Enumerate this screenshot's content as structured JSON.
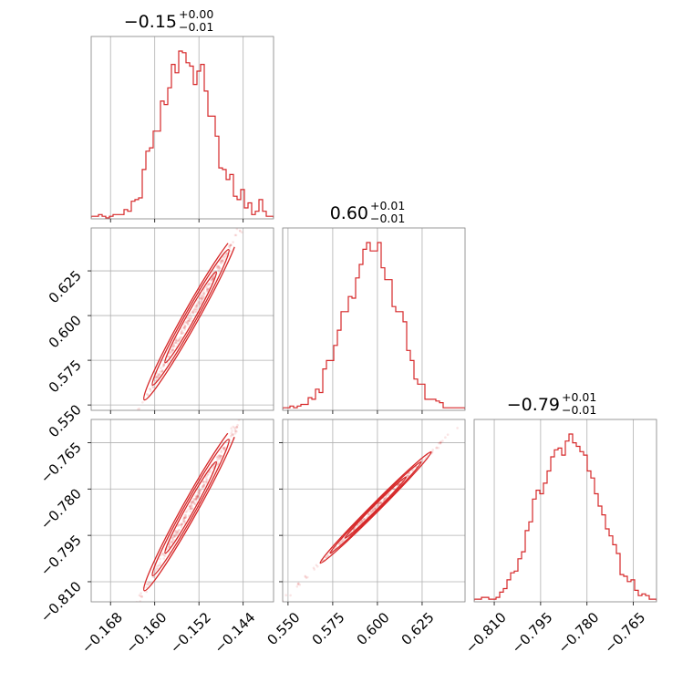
{
  "chart_data": {
    "type": "corner",
    "color": "#d62728",
    "grid": true,
    "params": [
      {
        "title": {
          "center": "−0.15",
          "upper": "+0.00",
          "lower": "−0.01"
        },
        "range": [
          -0.1715,
          -0.1385
        ],
        "ticks": [
          -0.168,
          -0.16,
          -0.152,
          -0.144
        ],
        "tick_labels": [
          "−0.168",
          "−0.160",
          "−0.152",
          "−0.144"
        ],
        "histogram": {
          "bin_start": -0.1715,
          "bin_width": 0.00066,
          "counts": [
            1,
            1,
            2,
            1,
            0,
            1,
            2,
            2,
            2,
            5,
            4,
            10,
            11,
            12,
            29,
            40,
            42,
            52,
            52,
            70,
            68,
            78,
            92,
            87,
            100,
            99,
            93,
            91,
            80,
            88,
            92,
            76,
            61,
            61,
            49,
            30,
            29,
            23,
            26,
            13,
            11,
            17,
            6,
            9,
            2,
            4,
            11,
            4,
            1,
            1
          ]
        }
      },
      {
        "title": {
          "center": "0.60",
          "upper": "+0.01",
          "lower": "−0.01"
        },
        "range": [
          0.547,
          0.649
        ],
        "ticks": [
          0.55,
          0.575,
          0.6,
          0.625
        ],
        "tick_labels": [
          "0.550",
          "0.575",
          "0.600",
          "0.625"
        ],
        "histogram": {
          "bin_start": 0.547,
          "bin_width": 0.00204,
          "counts": [
            1,
            1,
            2,
            1,
            2,
            3,
            3,
            7,
            6,
            12,
            10,
            24,
            29,
            29,
            38,
            47,
            58,
            58,
            67,
            66,
            78,
            86,
            95,
            99,
            94,
            94,
            99,
            84,
            77,
            77,
            61,
            58,
            58,
            52,
            35,
            29,
            18,
            15,
            15,
            6,
            6,
            6,
            5,
            4,
            1,
            1,
            1,
            1,
            1,
            1
          ]
        }
      },
      {
        "title": {
          "center": "−0.79",
          "upper": "+0.01",
          "lower": "−0.01"
        },
        "range": [
          -0.8165,
          -0.7575
        ],
        "ticks": [
          -0.81,
          -0.795,
          -0.78,
          -0.765
        ],
        "tick_labels": [
          "−0.810",
          "−0.795",
          "−0.780",
          "−0.765"
        ],
        "histogram": {
          "bin_start": -0.8165,
          "bin_width": 0.00118,
          "counts": [
            1,
            1,
            2,
            2,
            1,
            1,
            2,
            5,
            7,
            12,
            16,
            17,
            24,
            28,
            40,
            45,
            58,
            63,
            61,
            67,
            74,
            82,
            86,
            87,
            83,
            91,
            95,
            90,
            88,
            85,
            83,
            74,
            70,
            61,
            54,
            49,
            41,
            37,
            32,
            27,
            15,
            14,
            11,
            12,
            6,
            3,
            4,
            3,
            1,
            1
          ]
        }
      }
    ],
    "pairs": [
      {
        "x": 0,
        "y": 1,
        "slope": 5.5
      },
      {
        "x": 0,
        "y": 2,
        "slope": 3.2
      },
      {
        "x": 1,
        "y": 2,
        "slope": 0.58
      }
    ]
  },
  "axes_labels": {
    "col0": [
      "−0.168",
      "−0.160",
      "−0.152",
      "−0.144"
    ],
    "col1": [
      "0.550",
      "0.575",
      "0.600",
      "0.625"
    ],
    "col2": [
      "−0.810",
      "−0.795",
      "−0.780",
      "−0.765"
    ],
    "row1": [
      "0.550",
      "0.575",
      "0.600",
      "0.625"
    ],
    "row2": [
      "−0.810",
      "−0.795",
      "−0.780",
      "−0.765"
    ]
  }
}
